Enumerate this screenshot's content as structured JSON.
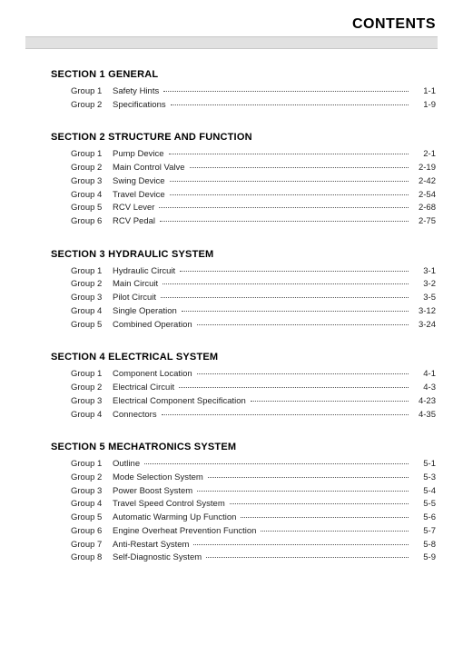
{
  "title": "CONTENTS",
  "sections": [
    {
      "heading": "SECTION 1  GENERAL",
      "items": [
        {
          "prefix": "Group  1",
          "label": "Safety Hints",
          "page": "1-1"
        },
        {
          "prefix": "Group  2",
          "label": "Specifications",
          "page": "1-9"
        }
      ]
    },
    {
      "heading": "SECTION 2  STRUCTURE AND FUNCTION",
      "items": [
        {
          "prefix": "Group  1",
          "label": "Pump Device",
          "page": "2-1"
        },
        {
          "prefix": "Group  2",
          "label": "Main Control Valve",
          "page": "2-19"
        },
        {
          "prefix": "Group  3",
          "label": "Swing Device",
          "page": "2-42"
        },
        {
          "prefix": "Group  4",
          "label": "Travel Device",
          "page": "2-54"
        },
        {
          "prefix": "Group  5",
          "label": "RCV Lever",
          "page": "2-68"
        },
        {
          "prefix": "Group  6",
          "label": "RCV Pedal",
          "page": "2-75"
        }
      ]
    },
    {
      "heading": "SECTION 3  HYDRAULIC SYSTEM",
      "items": [
        {
          "prefix": "Group  1",
          "label": "Hydraulic Circuit",
          "page": "3-1"
        },
        {
          "prefix": "Group  2",
          "label": "Main Circuit",
          "page": "3-2"
        },
        {
          "prefix": "Group  3",
          "label": "Pilot Circuit",
          "page": "3-5"
        },
        {
          "prefix": "Group  4",
          "label": "Single Operation",
          "page": "3-12"
        },
        {
          "prefix": "Group  5",
          "label": "Combined Operation",
          "page": "3-24"
        }
      ]
    },
    {
      "heading": "SECTION 4  ELECTRICAL SYSTEM",
      "items": [
        {
          "prefix": "Group  1",
          "label": "Component Location",
          "page": "4-1"
        },
        {
          "prefix": "Group  2",
          "label": "Electrical Circuit",
          "page": "4-3"
        },
        {
          "prefix": "Group  3",
          "label": "Electrical Component Specification",
          "page": "4-23"
        },
        {
          "prefix": "Group  4",
          "label": "Connectors",
          "page": "4-35"
        }
      ]
    },
    {
      "heading": "SECTION 5  MECHATRONICS SYSTEM",
      "items": [
        {
          "prefix": "Group  1",
          "label": "Outline",
          "page": "5-1"
        },
        {
          "prefix": "Group  2",
          "label": "Mode Selection System",
          "page": "5-3"
        },
        {
          "prefix": "Group  3",
          "label": "Power Boost System",
          "page": "5-4"
        },
        {
          "prefix": "Group  4",
          "label": "Travel Speed Control System",
          "page": "5-5"
        },
        {
          "prefix": "Group  5",
          "label": "Automatic Warming Up Function",
          "page": "5-6"
        },
        {
          "prefix": "Group  6",
          "label": "Engine Overheat Prevention Function",
          "page": "5-7"
        },
        {
          "prefix": "Group  7",
          "label": "Anti-Restart System",
          "page": "5-8"
        },
        {
          "prefix": "Group  8",
          "label": "Self-Diagnostic System",
          "page": "5-9"
        }
      ]
    }
  ]
}
